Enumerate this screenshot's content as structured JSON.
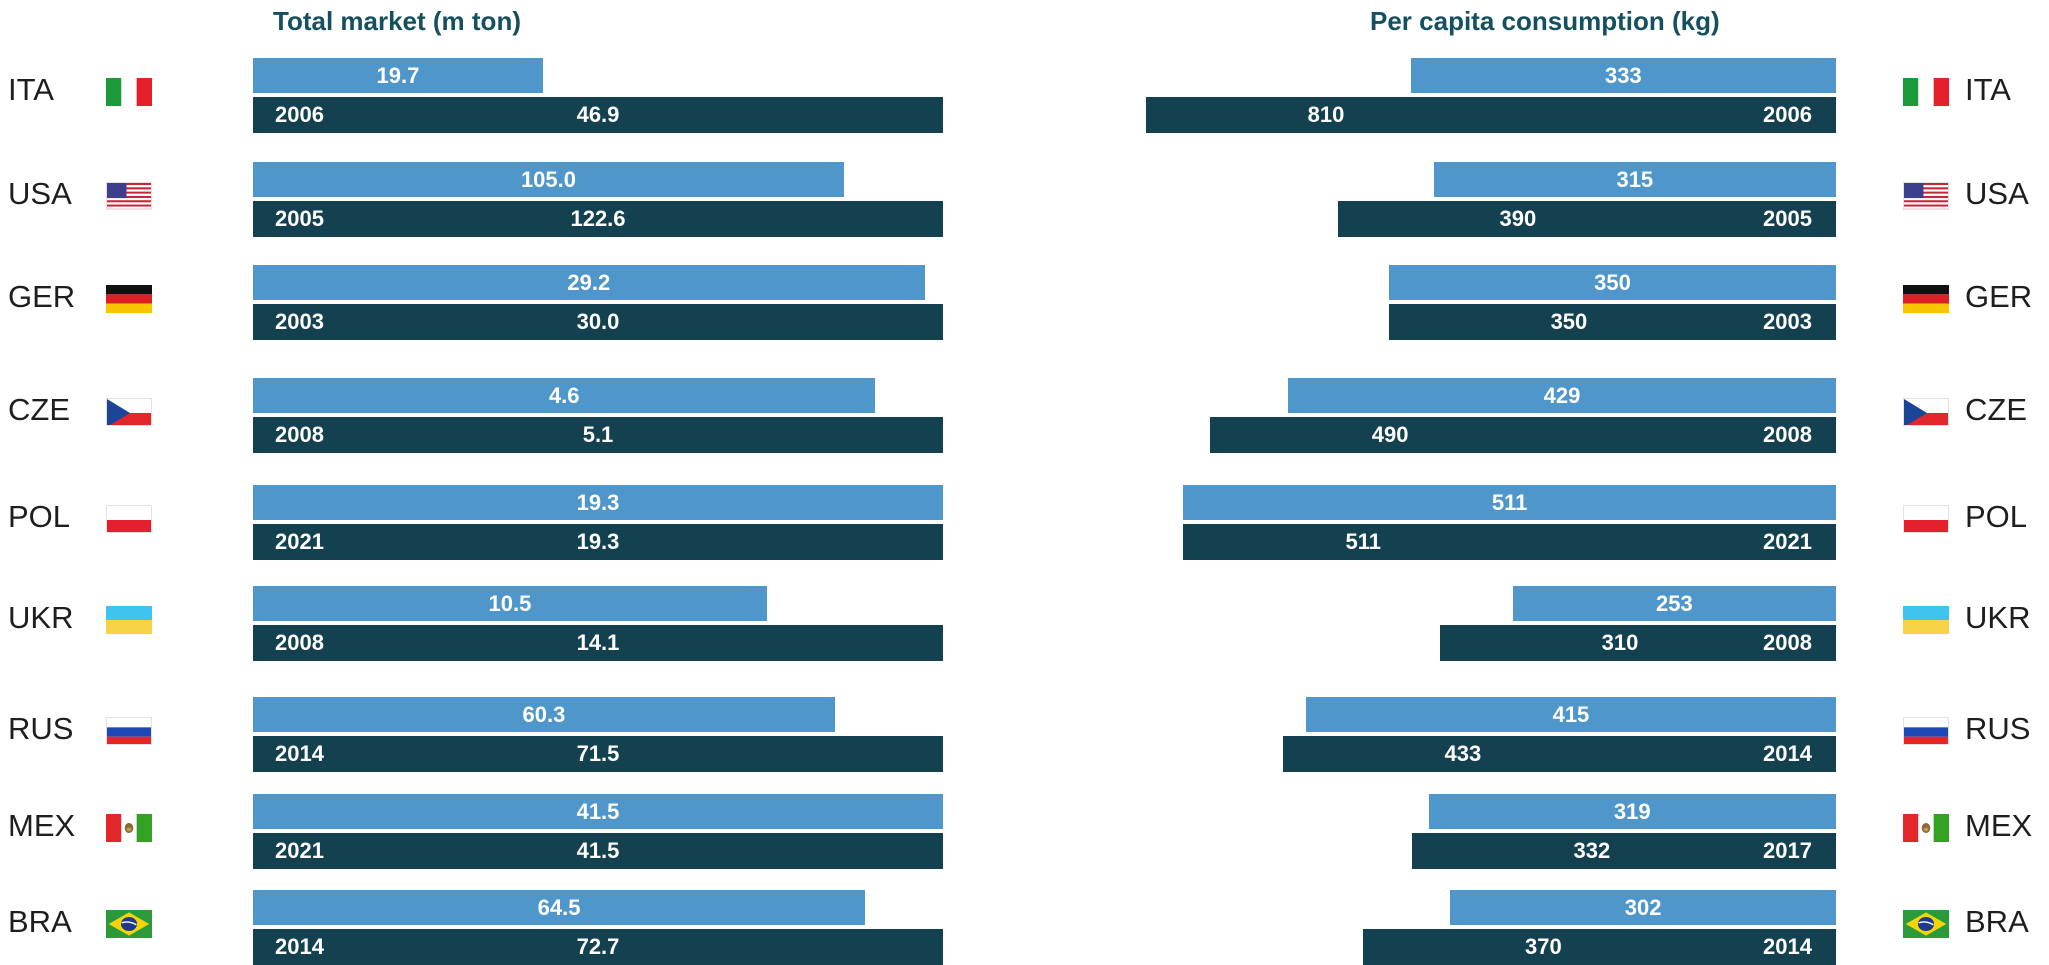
{
  "colors": {
    "title": "#14505f",
    "light_bar": "#4f97cb",
    "dark_bar": "#13414f"
  },
  "chart_data": [
    {
      "type": "bar",
      "orientation": "horizontal",
      "title": "Total market (m ton)",
      "categories": [
        "ITA",
        "USA",
        "GER",
        "CZE",
        "POL",
        "UKR",
        "RUS",
        "MEX",
        "BRA"
      ],
      "series": [
        {
          "values": [
            19.7,
            105.0,
            29.2,
            4.6,
            19.3,
            10.5,
            60.3,
            41.5,
            64.5
          ]
        },
        {
          "values": [
            46.9,
            122.6,
            30.0,
            5.1,
            19.3,
            14.1,
            71.5,
            41.5,
            72.7
          ]
        }
      ],
      "years": [
        "2006",
        "2005",
        "2003",
        "2008",
        "2021",
        "2008",
        "2014",
        "2021",
        "2014"
      ]
    },
    {
      "type": "bar",
      "orientation": "horizontal",
      "title": "Per capita consumption (kg)",
      "categories": [
        "ITA",
        "USA",
        "GER",
        "CZE",
        "POL",
        "UKR",
        "RUS",
        "MEX",
        "BRA"
      ],
      "series": [
        {
          "values": [
            333,
            315,
            350,
            429,
            511,
            253,
            415,
            319,
            302
          ]
        },
        {
          "values": [
            810,
            390,
            350,
            490,
            511,
            310,
            433,
            332,
            370
          ]
        }
      ],
      "years": [
        "2006",
        "2005",
        "2003",
        "2008",
        "2021",
        "2008",
        "2014",
        "2017",
        "2014"
      ]
    }
  ],
  "flags": [
    "italy-flag-icon",
    "usa-flag-icon",
    "germany-flag-icon",
    "czech-flag-icon",
    "poland-flag-icon",
    "ukraine-flag-icon",
    "russia-flag-icon",
    "mexico-flag-icon",
    "brazil-flag-icon"
  ]
}
